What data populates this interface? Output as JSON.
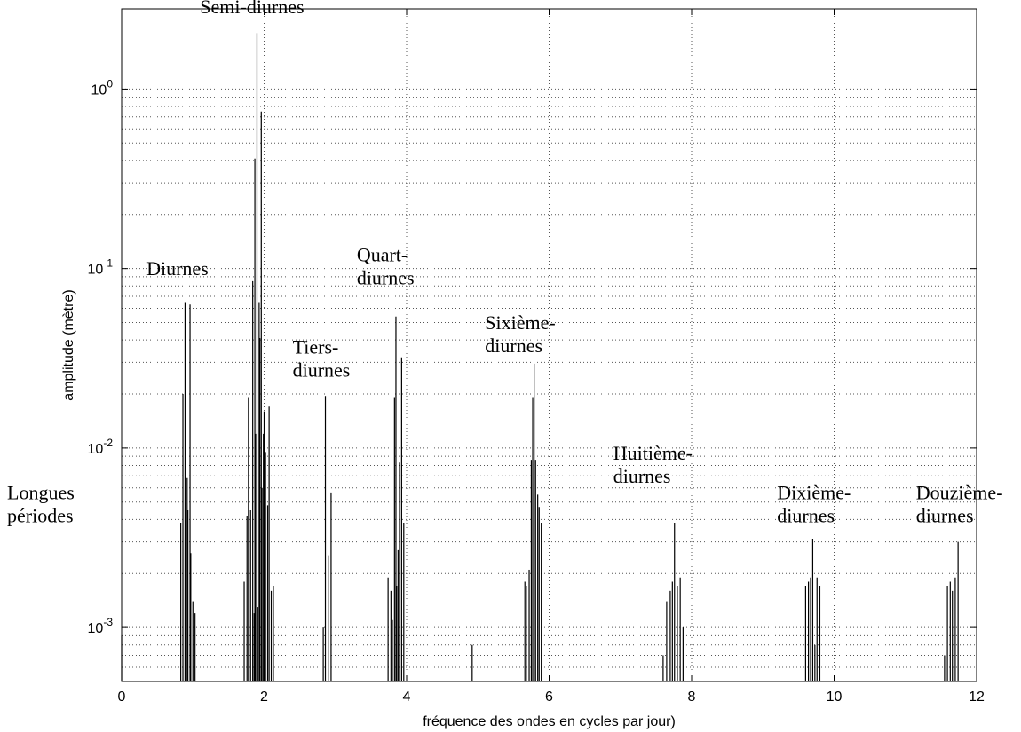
{
  "chart_data": {
    "type": "bar",
    "xlabel": "fréquence des ondes en cycles par jour)",
    "ylabel": "amplitude (mètre)",
    "xlim": [
      0,
      12
    ],
    "ylim": [
      0.0005,
      2.8
    ],
    "yscale": "log",
    "grid": true,
    "x_ticks": [
      {
        "value": 0,
        "label": "0"
      },
      {
        "value": 2,
        "label": "2"
      },
      {
        "value": 4,
        "label": "4"
      },
      {
        "value": 6,
        "label": "6"
      },
      {
        "value": 8,
        "label": "8"
      },
      {
        "value": 10,
        "label": "10"
      },
      {
        "value": 12,
        "label": "12"
      }
    ],
    "y_ticks": [
      {
        "value": 0.001,
        "base": "10",
        "exp": "-3"
      },
      {
        "value": 0.01,
        "base": "10",
        "exp": "-2"
      },
      {
        "value": 0.1,
        "base": "10",
        "exp": "-1"
      },
      {
        "value": 1,
        "base": "10",
        "exp": "0"
      }
    ],
    "annotations": [
      {
        "lines": [
          "Longues",
          "périodes"
        ],
        "x": -1.0,
        "y": 0.0052,
        "anchor": "start"
      },
      {
        "lines": [
          "Diurnes"
        ],
        "x": 0.35,
        "y": 0.092,
        "anchor": "start"
      },
      {
        "lines": [
          "Semi-diurnes"
        ],
        "x": 1.1,
        "y": 2.65,
        "anchor": "start"
      },
      {
        "lines": [
          "Tiers-",
          "diurnes"
        ],
        "x": 2.4,
        "y": 0.0335,
        "anchor": "start"
      },
      {
        "lines": [
          "Quart-",
          "diurnes"
        ],
        "x": 3.3,
        "y": 0.11,
        "anchor": "start"
      },
      {
        "lines": [
          "Sixième-",
          "diurnes"
        ],
        "x": 5.1,
        "y": 0.046,
        "anchor": "start"
      },
      {
        "lines": [
          "Huitième-",
          "diurnes"
        ],
        "x": 6.9,
        "y": 0.0086,
        "anchor": "start"
      },
      {
        "lines": [
          "Dixième-",
          "diurnes"
        ],
        "x": 9.2,
        "y": 0.0052,
        "anchor": "start"
      },
      {
        "lines": [
          "Douzième-",
          "diurnes"
        ],
        "x": 11.15,
        "y": 0.0052,
        "anchor": "start"
      }
    ],
    "series": [
      {
        "x": [
          0.0,
          0.83,
          0.86,
          0.89,
          0.92,
          0.93,
          0.96,
          0.97,
          1.0,
          1.03,
          1.72,
          1.76,
          1.78,
          1.81,
          1.84,
          1.86,
          1.87,
          1.88,
          1.9,
          1.91,
          1.93,
          1.94,
          1.96,
          1.97,
          1.99,
          2.0,
          2.02,
          2.05,
          2.07,
          2.1,
          2.13,
          2.83,
          2.86,
          2.9,
          2.94,
          3.74,
          3.78,
          3.8,
          3.83,
          3.85,
          3.86,
          3.88,
          3.9,
          3.93,
          3.96,
          4.92,
          5.66,
          5.68,
          5.72,
          5.75,
          5.77,
          5.79,
          5.81,
          5.84,
          5.86,
          5.89,
          7.6,
          7.65,
          7.7,
          7.73,
          7.76,
          7.8,
          7.84,
          7.88,
          9.6,
          9.64,
          9.67,
          9.7,
          9.73,
          9.76,
          9.8,
          11.55,
          11.59,
          11.63,
          11.66,
          11.7,
          11.74
        ],
        "values": [
          0.0009,
          0.0038,
          0.02,
          0.065,
          0.0068,
          0.0045,
          0.063,
          0.0026,
          0.0014,
          0.0012,
          0.0018,
          0.0042,
          0.019,
          0.0045,
          0.085,
          0.0012,
          0.41,
          0.012,
          2.05,
          0.0013,
          0.065,
          0.041,
          0.75,
          0.006,
          0.012,
          0.016,
          0.0095,
          0.0048,
          0.017,
          0.0016,
          0.0017,
          0.001,
          0.0195,
          0.0025,
          0.0056,
          0.0019,
          0.0016,
          0.0011,
          0.019,
          0.054,
          0.0017,
          0.0027,
          0.0083,
          0.032,
          0.0038,
          0.0008,
          0.0018,
          0.0017,
          0.0021,
          0.0085,
          0.019,
          0.0295,
          0.0085,
          0.0055,
          0.0047,
          0.0038,
          0.0007,
          0.0014,
          0.0016,
          0.0018,
          0.0038,
          0.0017,
          0.0019,
          0.001,
          0.0017,
          0.0018,
          0.0019,
          0.0031,
          0.0008,
          0.0019,
          0.0017,
          0.0007,
          0.0017,
          0.0018,
          0.0016,
          0.0019,
          0.003
        ]
      }
    ]
  }
}
